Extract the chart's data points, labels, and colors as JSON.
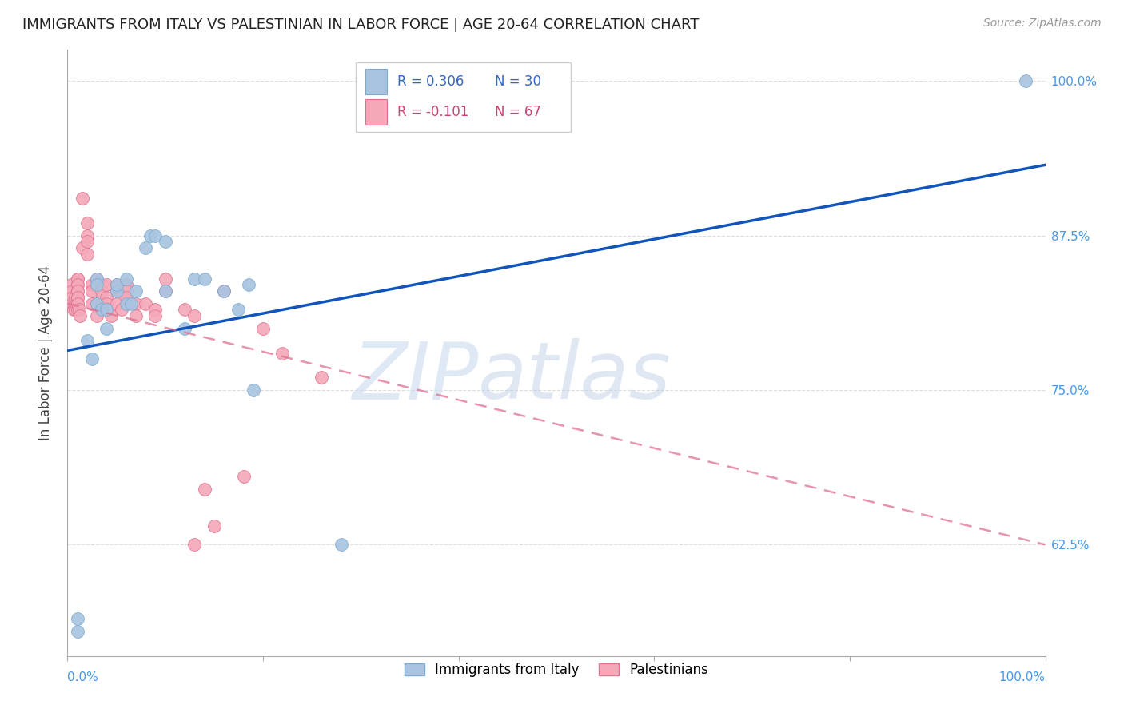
{
  "title": "IMMIGRANTS FROM ITALY VS PALESTINIAN IN LABOR FORCE | AGE 20-64 CORRELATION CHART",
  "source": "Source: ZipAtlas.com",
  "ylabel": "In Labor Force | Age 20-64",
  "yticks": [
    0.625,
    0.75,
    0.875,
    1.0
  ],
  "ytick_labels": [
    "62.5%",
    "75.0%",
    "87.5%",
    "100.0%"
  ],
  "xlim": [
    0.0,
    1.0
  ],
  "ylim": [
    0.535,
    1.025
  ],
  "legend_italy_R": "R = 0.306",
  "legend_italy_N": "N = 30",
  "legend_pal_R": "R = -0.101",
  "legend_pal_N": "N = 67",
  "italy_color": "#a8c4e0",
  "italy_edge": "#7aaad0",
  "pal_color": "#f4a8b8",
  "pal_edge": "#e07090",
  "italy_line_color": "#1155bb",
  "pal_line_color": "#e07090",
  "watermark_italy": "ZIP",
  "watermark_atlas": "atlas",
  "watermark_color_zip": "#c5d8ee",
  "watermark_color_atlas": "#b8cce4",
  "italy_line_x0": 0.0,
  "italy_line_y0": 0.782,
  "italy_line_x1": 1.0,
  "italy_line_y1": 0.932,
  "pal_line_x0": 0.0,
  "pal_line_y0": 0.82,
  "pal_line_x1": 1.0,
  "pal_line_y1": 0.625,
  "italy_x": [
    0.01,
    0.01,
    0.02,
    0.025,
    0.03,
    0.03,
    0.03,
    0.035,
    0.04,
    0.04,
    0.05,
    0.05,
    0.06,
    0.06,
    0.065,
    0.07,
    0.08,
    0.085,
    0.09,
    0.1,
    0.1,
    0.12,
    0.13,
    0.14,
    0.16,
    0.175,
    0.185,
    0.19,
    0.28,
    0.98
  ],
  "italy_y": [
    0.565,
    0.555,
    0.79,
    0.775,
    0.84,
    0.835,
    0.82,
    0.815,
    0.815,
    0.8,
    0.83,
    0.835,
    0.84,
    0.82,
    0.82,
    0.83,
    0.865,
    0.875,
    0.875,
    0.83,
    0.87,
    0.8,
    0.84,
    0.84,
    0.83,
    0.815,
    0.835,
    0.75,
    0.625,
    1.0
  ],
  "pal_x": [
    0.004,
    0.005,
    0.005,
    0.005,
    0.006,
    0.007,
    0.008,
    0.008,
    0.009,
    0.01,
    0.01,
    0.01,
    0.01,
    0.01,
    0.01,
    0.01,
    0.01,
    0.01,
    0.01,
    0.01,
    0.012,
    0.013,
    0.015,
    0.015,
    0.02,
    0.02,
    0.02,
    0.02,
    0.025,
    0.025,
    0.025,
    0.03,
    0.03,
    0.03,
    0.03,
    0.035,
    0.035,
    0.035,
    0.04,
    0.04,
    0.04,
    0.04,
    0.045,
    0.05,
    0.05,
    0.05,
    0.055,
    0.06,
    0.06,
    0.06,
    0.07,
    0.07,
    0.08,
    0.09,
    0.09,
    0.1,
    0.1,
    0.12,
    0.13,
    0.13,
    0.14,
    0.15,
    0.16,
    0.18,
    0.2,
    0.22,
    0.26
  ],
  "pal_y": [
    0.835,
    0.83,
    0.825,
    0.82,
    0.815,
    0.82,
    0.825,
    0.815,
    0.82,
    0.84,
    0.835,
    0.83,
    0.825,
    0.82,
    0.815,
    0.84,
    0.835,
    0.83,
    0.825,
    0.82,
    0.815,
    0.81,
    0.905,
    0.865,
    0.885,
    0.875,
    0.87,
    0.86,
    0.835,
    0.83,
    0.82,
    0.84,
    0.835,
    0.82,
    0.81,
    0.835,
    0.83,
    0.82,
    0.835,
    0.825,
    0.82,
    0.815,
    0.81,
    0.835,
    0.83,
    0.82,
    0.815,
    0.835,
    0.83,
    0.825,
    0.82,
    0.81,
    0.82,
    0.815,
    0.81,
    0.83,
    0.84,
    0.815,
    0.81,
    0.625,
    0.67,
    0.64,
    0.83,
    0.68,
    0.8,
    0.78,
    0.76
  ],
  "grid_color": "#dddddd",
  "axis_label_color": "#4499ee",
  "title_fontsize": 13,
  "source_fontsize": 10,
  "tick_label_fontsize": 11,
  "ylabel_fontsize": 12
}
